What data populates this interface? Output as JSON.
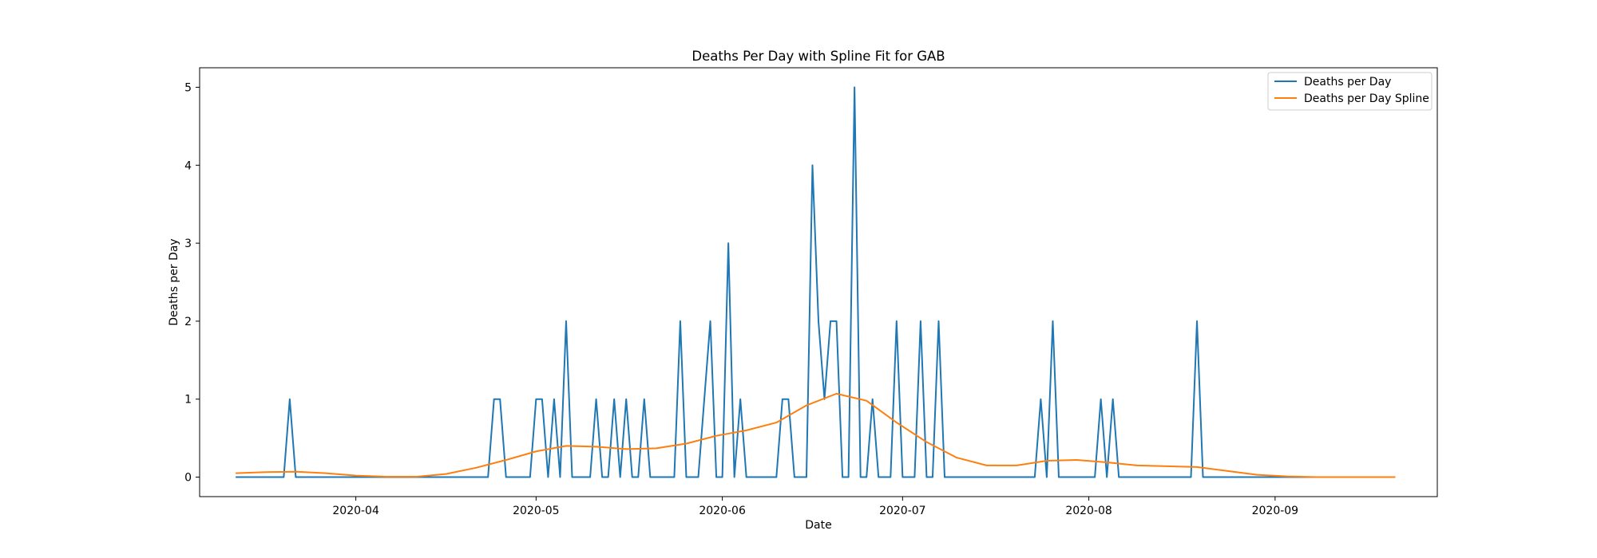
{
  "chart_data": {
    "type": "line",
    "title": "Deaths Per Day with Spline Fit for GAB",
    "xlabel": "Date",
    "ylabel": "Deaths per Day",
    "xlim": [
      "2020-03-06",
      "2020-09-28"
    ],
    "ylim": [
      -0.25,
      5.25
    ],
    "x_ticks": [
      "2020-04-01",
      "2020-05-01",
      "2020-06-01",
      "2020-07-01",
      "2020-08-01",
      "2020-09-01"
    ],
    "x_tick_labels": [
      "2020-04",
      "2020-05",
      "2020-06",
      "2020-07",
      "2020-08",
      "2020-09"
    ],
    "y_ticks": [
      0,
      1,
      2,
      3,
      4,
      5
    ],
    "y_tick_labels": [
      "0",
      "1",
      "2",
      "3",
      "4",
      "5"
    ],
    "legend_position": "upper right",
    "series": [
      {
        "name": "Deaths per Day",
        "color": "#1f77b4",
        "points": [
          [
            "2020-03-12",
            0
          ],
          [
            "2020-03-20",
            0
          ],
          [
            "2020-03-21",
            1
          ],
          [
            "2020-03-22",
            0
          ],
          [
            "2020-04-23",
            0
          ],
          [
            "2020-04-24",
            1
          ],
          [
            "2020-04-25",
            1
          ],
          [
            "2020-04-26",
            0
          ],
          [
            "2020-04-30",
            0
          ],
          [
            "2020-05-01",
            1
          ],
          [
            "2020-05-02",
            1
          ],
          [
            "2020-05-03",
            0
          ],
          [
            "2020-05-04",
            1
          ],
          [
            "2020-05-05",
            0
          ],
          [
            "2020-05-06",
            2
          ],
          [
            "2020-05-07",
            0
          ],
          [
            "2020-05-10",
            0
          ],
          [
            "2020-05-11",
            1
          ],
          [
            "2020-05-12",
            0
          ],
          [
            "2020-05-13",
            0
          ],
          [
            "2020-05-14",
            1
          ],
          [
            "2020-05-15",
            0
          ],
          [
            "2020-05-16",
            1
          ],
          [
            "2020-05-17",
            0
          ],
          [
            "2020-05-18",
            0
          ],
          [
            "2020-05-19",
            1
          ],
          [
            "2020-05-20",
            0
          ],
          [
            "2020-05-24",
            0
          ],
          [
            "2020-05-25",
            2
          ],
          [
            "2020-05-26",
            0
          ],
          [
            "2020-05-28",
            0
          ],
          [
            "2020-05-30",
            2
          ],
          [
            "2020-05-31",
            0
          ],
          [
            "2020-06-01",
            0
          ],
          [
            "2020-06-02",
            3
          ],
          [
            "2020-06-03",
            0
          ],
          [
            "2020-06-04",
            1
          ],
          [
            "2020-06-05",
            0
          ],
          [
            "2020-06-10",
            0
          ],
          [
            "2020-06-11",
            1
          ],
          [
            "2020-06-12",
            1
          ],
          [
            "2020-06-13",
            0
          ],
          [
            "2020-06-15",
            0
          ],
          [
            "2020-06-16",
            4
          ],
          [
            "2020-06-17",
            2
          ],
          [
            "2020-06-18",
            1
          ],
          [
            "2020-06-19",
            2
          ],
          [
            "2020-06-20",
            2
          ],
          [
            "2020-06-21",
            0
          ],
          [
            "2020-06-22",
            0
          ],
          [
            "2020-06-23",
            5
          ],
          [
            "2020-06-24",
            0
          ],
          [
            "2020-06-25",
            0
          ],
          [
            "2020-06-26",
            1
          ],
          [
            "2020-06-27",
            0
          ],
          [
            "2020-06-29",
            0
          ],
          [
            "2020-06-30",
            2
          ],
          [
            "2020-07-01",
            0
          ],
          [
            "2020-07-03",
            0
          ],
          [
            "2020-07-04",
            2
          ],
          [
            "2020-07-05",
            0
          ],
          [
            "2020-07-06",
            0
          ],
          [
            "2020-07-07",
            2
          ],
          [
            "2020-07-08",
            0
          ],
          [
            "2020-07-23",
            0
          ],
          [
            "2020-07-24",
            1
          ],
          [
            "2020-07-25",
            0
          ],
          [
            "2020-07-26",
            2
          ],
          [
            "2020-07-27",
            0
          ],
          [
            "2020-08-02",
            0
          ],
          [
            "2020-08-03",
            1
          ],
          [
            "2020-08-04",
            0
          ],
          [
            "2020-08-05",
            1
          ],
          [
            "2020-08-06",
            0
          ],
          [
            "2020-08-18",
            0
          ],
          [
            "2020-08-19",
            2
          ],
          [
            "2020-08-20",
            0
          ],
          [
            "2020-09-21",
            0
          ]
        ]
      },
      {
        "name": "Deaths per Day Spline",
        "color": "#ff7f0e",
        "points": [
          [
            "2020-03-12",
            0.05
          ],
          [
            "2020-03-17",
            0.065
          ],
          [
            "2020-03-22",
            0.07
          ],
          [
            "2020-03-27",
            0.05
          ],
          [
            "2020-04-01",
            0.02
          ],
          [
            "2020-04-06",
            0.005
          ],
          [
            "2020-04-11",
            0.005
          ],
          [
            "2020-04-16",
            0.04
          ],
          [
            "2020-04-21",
            0.12
          ],
          [
            "2020-04-26",
            0.22
          ],
          [
            "2020-05-01",
            0.33
          ],
          [
            "2020-05-06",
            0.4
          ],
          [
            "2020-05-11",
            0.39
          ],
          [
            "2020-05-16",
            0.36
          ],
          [
            "2020-05-21",
            0.37
          ],
          [
            "2020-05-26",
            0.43
          ],
          [
            "2020-05-31",
            0.53
          ],
          [
            "2020-06-05",
            0.6
          ],
          [
            "2020-06-10",
            0.7
          ],
          [
            "2020-06-15",
            0.92
          ],
          [
            "2020-06-20",
            1.07
          ],
          [
            "2020-06-25",
            0.98
          ],
          [
            "2020-06-30",
            0.7
          ],
          [
            "2020-07-05",
            0.45
          ],
          [
            "2020-07-10",
            0.25
          ],
          [
            "2020-07-15",
            0.15
          ],
          [
            "2020-07-20",
            0.15
          ],
          [
            "2020-07-25",
            0.21
          ],
          [
            "2020-07-30",
            0.22
          ],
          [
            "2020-08-04",
            0.19
          ],
          [
            "2020-08-09",
            0.15
          ],
          [
            "2020-08-14",
            0.14
          ],
          [
            "2020-08-19",
            0.13
          ],
          [
            "2020-08-24",
            0.08
          ],
          [
            "2020-08-29",
            0.03
          ],
          [
            "2020-09-03",
            0.01
          ],
          [
            "2020-09-08",
            0.0
          ],
          [
            "2020-09-13",
            0.0
          ],
          [
            "2020-09-21",
            0.0
          ]
        ]
      }
    ]
  }
}
